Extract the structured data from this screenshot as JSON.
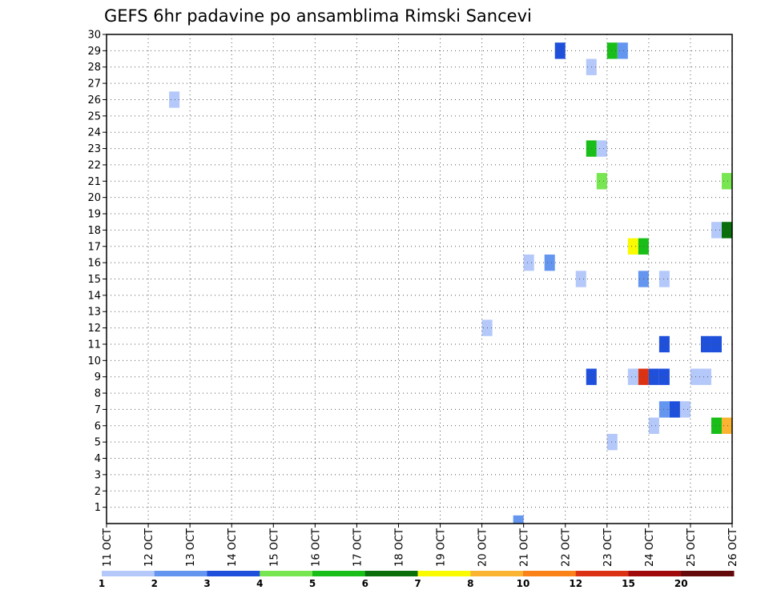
{
  "chart_data": {
    "type": "heatmap",
    "title": "GEFS 6hr padavine po ansamblima Rimski Sancevi",
    "xlabel": "",
    "ylabel": "",
    "x_ticks": [
      "11 OCT",
      "12 OCT",
      "13 OCT",
      "14 OCT",
      "15 OCT",
      "16 OCT",
      "17 OCT",
      "18 OCT",
      "19 OCT",
      "20 OCT",
      "21 OCT",
      "22 OCT",
      "23 OCT",
      "24 OCT",
      "25 OCT",
      "26 OCT"
    ],
    "xlim_days": [
      0,
      15
    ],
    "y_ticks": [
      1,
      2,
      3,
      4,
      5,
      6,
      7,
      8,
      9,
      10,
      11,
      12,
      13,
      14,
      15,
      16,
      17,
      18,
      19,
      20,
      21,
      22,
      23,
      24,
      25,
      26,
      27,
      28,
      29,
      30
    ],
    "ylim": [
      0,
      30
    ],
    "grid": true,
    "bin_hours": 6,
    "colorbar": {
      "placement": "bottom",
      "labels": [
        "1",
        "2",
        "3",
        "4",
        "5",
        "6",
        "7",
        "8",
        "10",
        "12",
        "15",
        "20"
      ],
      "colors": [
        "#b4c8fa",
        "#6496f0",
        "#1e50dc",
        "#78e650",
        "#19be19",
        "#0a6e0a",
        "#fafa00",
        "#fab432",
        "#fa8219",
        "#dc3214",
        "#a00a0a",
        "#640a0a"
      ]
    },
    "cells": [
      {
        "time": "12 OCT 12Z",
        "member": 26,
        "class": 0
      },
      {
        "time": "20 OCT 00Z",
        "member": 12,
        "class": 0
      },
      {
        "time": "20 OCT 18Z",
        "member": 0,
        "class": 1
      },
      {
        "time": "21 OCT 00Z",
        "member": 16,
        "class": 0
      },
      {
        "time": "21 OCT 12Z",
        "member": 16,
        "class": 1
      },
      {
        "time": "21 OCT 18Z",
        "member": 29,
        "class": 2
      },
      {
        "time": "22 OCT 06Z",
        "member": 15,
        "class": 0
      },
      {
        "time": "22 OCT 12Z",
        "member": 28,
        "class": 0
      },
      {
        "time": "22 OCT 12Z",
        "member": 23,
        "class": 4
      },
      {
        "time": "22 OCT 12Z",
        "member": 9,
        "class": 2
      },
      {
        "time": "22 OCT 18Z",
        "member": 23,
        "class": 0
      },
      {
        "time": "22 OCT 18Z",
        "member": 21,
        "class": 3
      },
      {
        "time": "23 OCT 00Z",
        "member": 29,
        "class": 4
      },
      {
        "time": "23 OCT 00Z",
        "member": 5,
        "class": 0
      },
      {
        "time": "23 OCT 06Z",
        "member": 29,
        "class": 1
      },
      {
        "time": "23 OCT 12Z",
        "member": 17,
        "class": 6
      },
      {
        "time": "23 OCT 12Z",
        "member": 9,
        "class": 0
      },
      {
        "time": "23 OCT 18Z",
        "member": 17,
        "class": 4
      },
      {
        "time": "23 OCT 18Z",
        "member": 15,
        "class": 1
      },
      {
        "time": "23 OCT 18Z",
        "member": 9,
        "class": 9
      },
      {
        "time": "24 OCT 00Z",
        "member": 9,
        "class": 2
      },
      {
        "time": "24 OCT 00Z",
        "member": 6,
        "class": 0
      },
      {
        "time": "24 OCT 06Z",
        "member": 15,
        "class": 0
      },
      {
        "time": "24 OCT 06Z",
        "member": 11,
        "class": 2
      },
      {
        "time": "24 OCT 06Z",
        "member": 9,
        "class": 2
      },
      {
        "time": "24 OCT 06Z",
        "member": 7,
        "class": 1
      },
      {
        "time": "24 OCT 12Z",
        "member": 7,
        "class": 2
      },
      {
        "time": "24 OCT 18Z",
        "member": 7,
        "class": 0
      },
      {
        "time": "25 OCT 00Z",
        "member": 9,
        "class": 0
      },
      {
        "time": "25 OCT 06Z",
        "member": 9,
        "class": 0
      },
      {
        "time": "25 OCT 06Z",
        "member": 11,
        "class": 2
      },
      {
        "time": "25 OCT 12Z",
        "member": 11,
        "class": 2
      },
      {
        "time": "25 OCT 12Z",
        "member": 18,
        "class": 0
      },
      {
        "time": "25 OCT 12Z",
        "member": 6,
        "class": 4
      },
      {
        "time": "25 OCT 18Z",
        "member": 18,
        "class": 5
      },
      {
        "time": "25 OCT 18Z",
        "member": 21,
        "class": 3
      },
      {
        "time": "25 OCT 18Z",
        "member": 6,
        "class": 7
      }
    ]
  }
}
